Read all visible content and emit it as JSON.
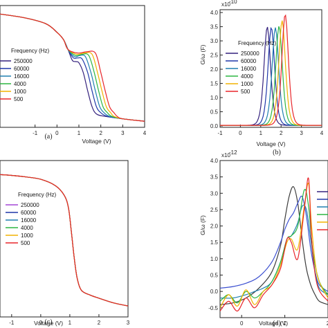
{
  "chart_data": [
    {
      "type": "line",
      "panel": "a",
      "caption": "(a)",
      "xlabel": "Voltage (V)",
      "ylabel": "",
      "xlim": [
        -2.6,
        4
      ],
      "ylim": [
        0,
        1
      ],
      "xticks": [
        "-1",
        "0",
        "1",
        "2",
        "3",
        "4"
      ],
      "xtick_values": [
        -1,
        0,
        1,
        2,
        3,
        4
      ],
      "legend_title": "Frequency (Hz)",
      "series": [
        {
          "name": "250000",
          "color": "#34217d",
          "x": [
            -2.6,
            -1.5,
            -0.5,
            0,
            0.3,
            0.5,
            0.7,
            0.85,
            1.0,
            1.2,
            1.4,
            1.6,
            1.8,
            2.2,
            3.0,
            4.0
          ],
          "y": [
            0.93,
            0.9,
            0.85,
            0.78,
            0.72,
            0.64,
            0.55,
            0.54,
            0.53,
            0.45,
            0.3,
            0.17,
            0.11,
            0.09,
            0.07,
            0.05
          ]
        },
        {
          "name": "60000",
          "color": "#1f37a9",
          "x": [
            -2.6,
            -1.5,
            -0.5,
            0,
            0.3,
            0.5,
            0.75,
            0.95,
            1.15,
            1.4,
            1.6,
            1.8,
            2.0,
            2.3,
            3.0,
            4.0
          ],
          "y": [
            0.93,
            0.9,
            0.85,
            0.78,
            0.72,
            0.64,
            0.57,
            0.57,
            0.56,
            0.45,
            0.3,
            0.17,
            0.12,
            0.09,
            0.07,
            0.05
          ]
        },
        {
          "name": "16000",
          "color": "#1e7fb0",
          "x": [
            -2.6,
            -1.5,
            -0.5,
            0,
            0.3,
            0.5,
            0.8,
            1.05,
            1.3,
            1.55,
            1.75,
            1.95,
            2.15,
            2.4,
            3.0,
            4.0
          ],
          "y": [
            0.93,
            0.9,
            0.85,
            0.78,
            0.72,
            0.64,
            0.58,
            0.59,
            0.58,
            0.45,
            0.3,
            0.17,
            0.12,
            0.09,
            0.07,
            0.05
          ]
        },
        {
          "name": "4000",
          "color": "#2bb540",
          "x": [
            -2.6,
            -1.5,
            -0.5,
            0,
            0.3,
            0.5,
            0.85,
            1.15,
            1.45,
            1.7,
            1.9,
            2.1,
            2.3,
            2.5,
            3.0,
            4.0
          ],
          "y": [
            0.93,
            0.9,
            0.85,
            0.78,
            0.72,
            0.64,
            0.59,
            0.6,
            0.59,
            0.45,
            0.3,
            0.17,
            0.12,
            0.09,
            0.07,
            0.05
          ]
        },
        {
          "name": "1000",
          "color": "#f2b200",
          "x": [
            -2.6,
            -1.5,
            -0.5,
            0,
            0.3,
            0.5,
            0.9,
            1.25,
            1.6,
            1.85,
            2.05,
            2.25,
            2.45,
            2.6,
            3.0,
            4.0
          ],
          "y": [
            0.93,
            0.9,
            0.85,
            0.78,
            0.72,
            0.64,
            0.6,
            0.61,
            0.6,
            0.45,
            0.3,
            0.17,
            0.12,
            0.09,
            0.07,
            0.05
          ]
        },
        {
          "name": "500",
          "color": "#e8252a",
          "x": [
            -2.6,
            -1.5,
            -0.5,
            0,
            0.3,
            0.5,
            0.95,
            1.35,
            1.75,
            2.0,
            2.2,
            2.4,
            2.6,
            2.75,
            3.0,
            4.0
          ],
          "y": [
            0.93,
            0.9,
            0.85,
            0.78,
            0.72,
            0.64,
            0.61,
            0.62,
            0.61,
            0.45,
            0.3,
            0.17,
            0.12,
            0.09,
            0.07,
            0.05
          ]
        }
      ]
    },
    {
      "type": "line",
      "panel": "b",
      "caption": "(b)",
      "xlabel": "Voltage (V)",
      "ylabel": "G/ω (F)",
      "scale_label": "x10",
      "scale_exp": "-10",
      "xlim": [
        -1,
        4
      ],
      "ylim": [
        -0.05,
        4.1
      ],
      "xticks": [
        "-1",
        "0",
        "1",
        "2",
        "3",
        "4"
      ],
      "xtick_values": [
        -1,
        0,
        1,
        2,
        3,
        4
      ],
      "yticks": [
        "0.0",
        "0.5",
        "1.0",
        "1.5",
        "2.0",
        "2.5",
        "3.0",
        "3.5",
        "4.0"
      ],
      "ytick_values": [
        0,
        0.5,
        1,
        1.5,
        2,
        2.5,
        3,
        3.5,
        4
      ],
      "legend_title": "Frequency (Hz)",
      "series": [
        {
          "name": "250000",
          "color": "#34217d",
          "peak_x": 1.32,
          "peak_y": 3.48,
          "width": 0.26
        },
        {
          "name": "60000",
          "color": "#1f37a9",
          "peak_x": 1.52,
          "peak_y": 3.46,
          "width": 0.26
        },
        {
          "name": "16000",
          "color": "#1e7fb0",
          "peak_x": 1.72,
          "peak_y": 3.45,
          "width": 0.26
        },
        {
          "name": "4000",
          "color": "#2bb540",
          "peak_x": 1.9,
          "peak_y": 3.5,
          "width": 0.26
        },
        {
          "name": "1000",
          "color": "#f2b200",
          "peak_x": 2.05,
          "peak_y": 3.7,
          "width": 0.26
        },
        {
          "name": "500",
          "color": "#e8252a",
          "peak_x": 2.2,
          "peak_y": 3.92,
          "width": 0.26
        }
      ]
    },
    {
      "type": "line",
      "panel": "c",
      "caption": "(c)",
      "xlabel": "Voltage (V)",
      "ylabel": "",
      "xlim": [
        -1.4,
        3
      ],
      "ylim": [
        0,
        1
      ],
      "xticks": [
        "-1",
        "0",
        "1",
        "2",
        "3"
      ],
      "xtick_values": [
        -1,
        0,
        1,
        2,
        3
      ],
      "legend_title": "Frequency (Hz)",
      "series": [
        {
          "name": "250000",
          "color": "#a347d6",
          "x": [
            -1.4,
            -1.0,
            -0.5,
            0,
            0.5,
            0.8,
            0.95,
            1.05,
            1.15,
            1.25,
            1.4,
            1.7,
            2.0,
            2.5,
            3.0
          ],
          "y": [
            0.91,
            0.905,
            0.895,
            0.88,
            0.84,
            0.78,
            0.7,
            0.55,
            0.38,
            0.25,
            0.17,
            0.14,
            0.12,
            0.09,
            0.07
          ]
        },
        {
          "name": "60000",
          "color": "#1f37a9",
          "x": [
            -1.4,
            -1.0,
            -0.5,
            0,
            0.5,
            0.8,
            0.95,
            1.05,
            1.15,
            1.25,
            1.4,
            1.7,
            2.0,
            2.5,
            3.0
          ],
          "y": [
            0.91,
            0.905,
            0.895,
            0.88,
            0.84,
            0.78,
            0.7,
            0.55,
            0.38,
            0.25,
            0.17,
            0.14,
            0.12,
            0.09,
            0.07
          ]
        },
        {
          "name": "16000",
          "color": "#1e7fb0",
          "x": [
            -1.4,
            -1.0,
            -0.5,
            0,
            0.5,
            0.8,
            0.95,
            1.05,
            1.15,
            1.25,
            1.4,
            1.7,
            2.0,
            2.5,
            3.0
          ],
          "y": [
            0.91,
            0.905,
            0.895,
            0.88,
            0.84,
            0.78,
            0.7,
            0.55,
            0.38,
            0.25,
            0.17,
            0.14,
            0.12,
            0.09,
            0.07
          ]
        },
        {
          "name": "4000",
          "color": "#2bb540",
          "x": [
            -1.4,
            -1.0,
            -0.5,
            0,
            0.5,
            0.8,
            0.95,
            1.05,
            1.15,
            1.25,
            1.4,
            1.7,
            2.0,
            2.5,
            3.0
          ],
          "y": [
            0.91,
            0.905,
            0.895,
            0.88,
            0.84,
            0.78,
            0.7,
            0.55,
            0.38,
            0.25,
            0.17,
            0.14,
            0.12,
            0.09,
            0.07
          ]
        },
        {
          "name": "1000",
          "color": "#f2b200",
          "x": [
            -1.4,
            -1.0,
            -0.5,
            0,
            0.5,
            0.8,
            0.95,
            1.05,
            1.15,
            1.25,
            1.4,
            1.7,
            2.0,
            2.5,
            3.0
          ],
          "y": [
            0.91,
            0.905,
            0.895,
            0.88,
            0.84,
            0.78,
            0.7,
            0.55,
            0.38,
            0.25,
            0.17,
            0.14,
            0.12,
            0.09,
            0.07
          ]
        },
        {
          "name": "500",
          "color": "#e8252a",
          "x": [
            -1.4,
            -1.0,
            -0.5,
            0,
            0.5,
            0.8,
            0.95,
            1.05,
            1.15,
            1.25,
            1.4,
            1.7,
            2.0,
            2.5,
            3.0
          ],
          "y": [
            0.91,
            0.905,
            0.895,
            0.88,
            0.84,
            0.78,
            0.7,
            0.55,
            0.38,
            0.25,
            0.17,
            0.14,
            0.12,
            0.09,
            0.07
          ]
        }
      ]
    },
    {
      "type": "line",
      "panel": "d",
      "caption": "(d)",
      "xlabel": "Voltage (V)",
      "ylabel": "G/ω (F)",
      "scale_label": "x10",
      "scale_exp": "-12",
      "xlim": [
        -0.5,
        2.0
      ],
      "ylim": [
        -0.8,
        4.0
      ],
      "xticks": [
        "0",
        "1",
        "2"
      ],
      "xtick_values": [
        0,
        1,
        2
      ],
      "yticks": [
        "-0.5",
        "0.0",
        "0.5",
        "1.0",
        "1.5",
        "2.0",
        "2.5",
        "3.0",
        "3.5",
        "4.0"
      ],
      "ytick_values": [
        -0.5,
        0,
        0.5,
        1,
        1.5,
        2,
        2.5,
        3,
        3.5,
        4
      ],
      "legend_title": "Fre",
      "legend_colors": [
        "#34217d",
        "#1f37a9",
        "#1e7fb0",
        "#2bb540",
        "#f2b200",
        "#e8252a"
      ],
      "series": [
        {
          "color": "#3a3a3a",
          "x": [
            -0.5,
            -0.2,
            0.1,
            0.4,
            0.7,
            0.9,
            1.0,
            1.1,
            1.2,
            1.3,
            1.4,
            1.5,
            1.6,
            1.7,
            1.8,
            2.0
          ],
          "y": [
            -0.4,
            -0.35,
            -0.2,
            0.1,
            0.6,
            1.4,
            2.2,
            2.9,
            3.2,
            2.7,
            1.6,
            0.7,
            0.2,
            -0.1,
            -0.3,
            -0.4
          ]
        },
        {
          "color": "#3b4fd0",
          "x": [
            -0.5,
            -0.2,
            0.1,
            0.4,
            0.7,
            0.9,
            1.0,
            1.1,
            1.2,
            1.3,
            1.4,
            1.5,
            1.6,
            1.7,
            1.8,
            2.0
          ],
          "y": [
            0.1,
            0.15,
            0.25,
            0.45,
            0.9,
            1.5,
            1.9,
            2.2,
            2.4,
            2.7,
            2.9,
            2.3,
            1.3,
            0.6,
            0.2,
            0.0
          ]
        },
        {
          "color": "#1e7fb0",
          "x": [
            -0.5,
            -0.2,
            0.1,
            0.3,
            0.5,
            0.7,
            0.9,
            1.05,
            1.15,
            1.3,
            1.4,
            1.5,
            1.6,
            1.7,
            1.8,
            2.0
          ],
          "y": [
            -0.2,
            -0.2,
            -0.1,
            0.0,
            0.1,
            0.3,
            0.9,
            1.6,
            1.7,
            2.1,
            2.6,
            2.5,
            1.6,
            0.6,
            0.1,
            -0.1
          ]
        },
        {
          "color": "#2bb540",
          "x": [
            -0.5,
            -0.3,
            -0.1,
            0.1,
            0.3,
            0.5,
            0.7,
            0.9,
            1.05,
            1.15,
            1.3,
            1.45,
            1.55,
            1.65,
            1.8,
            2.0
          ],
          "y": [
            -0.3,
            -0.1,
            -0.35,
            0.0,
            -0.2,
            0.0,
            0.3,
            0.9,
            1.6,
            1.7,
            2.0,
            3.1,
            2.6,
            1.2,
            0.3,
            -0.1
          ]
        },
        {
          "color": "#f2b200",
          "x": [
            -0.5,
            -0.3,
            -0.1,
            0.1,
            0.3,
            0.5,
            0.7,
            0.9,
            1.05,
            1.15,
            1.3,
            1.45,
            1.55,
            1.62,
            1.75,
            2.0
          ],
          "y": [
            -0.5,
            -0.1,
            -0.45,
            0.05,
            -0.4,
            0.0,
            0.2,
            0.8,
            1.5,
            1.6,
            1.3,
            2.6,
            3.3,
            2.0,
            0.5,
            -0.2
          ]
        },
        {
          "color": "#e8252a",
          "x": [
            -0.5,
            -0.3,
            -0.1,
            0.1,
            0.3,
            0.5,
            0.7,
            0.9,
            1.05,
            1.15,
            1.3,
            1.45,
            1.55,
            1.62,
            1.75,
            2.0
          ],
          "y": [
            -0.6,
            -0.3,
            -0.6,
            -0.2,
            -0.5,
            -0.1,
            0.2,
            0.7,
            1.6,
            1.5,
            1.0,
            2.5,
            3.45,
            1.6,
            0.2,
            -0.3
          ]
        }
      ]
    }
  ]
}
